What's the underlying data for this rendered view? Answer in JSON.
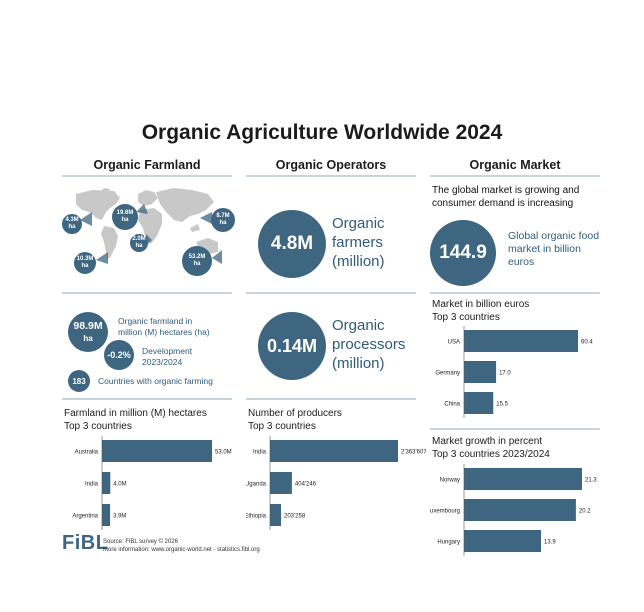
{
  "title": "Organic Agriculture Worldwide 2024",
  "columns": {
    "farmland": "Organic Farmland",
    "operators": "Organic Operators",
    "market": "Organic Market"
  },
  "map_bubbles": [
    {
      "value": "4.3M",
      "unit": "ha"
    },
    {
      "value": "19.6M",
      "unit": "ha"
    },
    {
      "value": "8.7M",
      "unit": "ha"
    },
    {
      "value": "2.0M",
      "unit": "ha"
    },
    {
      "value": "10.3M",
      "unit": "ha"
    },
    {
      "value": "53.2M",
      "unit": "ha"
    }
  ],
  "farmland_stats": {
    "area_value": "98.9M",
    "area_unit": "ha",
    "area_label_1": "Organic farmland in",
    "area_label_2": "million (M) hectares (ha)",
    "dev_value": "-0.2%",
    "dev_label_1": "Development",
    "dev_label_2": "2023/2024",
    "countries_value": "183",
    "countries_label": "Countries with organic farming"
  },
  "operators": {
    "farmers_value": "4.8M",
    "farmers_label": [
      "Organic",
      "farmers",
      "(million)"
    ],
    "processors_value": "0.14M",
    "processors_label": [
      "Organic",
      "processors",
      "(million)"
    ]
  },
  "market": {
    "intro_1": "The global market is growing and",
    "intro_2": "consumer demand is increasing",
    "value": "144.9",
    "label": [
      "Global organic food",
      "market in billion",
      "euros"
    ]
  },
  "footer": {
    "logo": "FiBL",
    "source": "Source: FiBL survey © 2026",
    "more": "More information: www.organic-world.net - statistics.fibl.org"
  },
  "chart_data": [
    {
      "type": "bar",
      "title_1": "Farmland in million (M) hectares",
      "title_2": "Top 3 countries",
      "categories": [
        "Australia",
        "India",
        "Argentina"
      ],
      "values": [
        53.0,
        4.0,
        3.9
      ],
      "value_labels": [
        "53.0M",
        "4.0M",
        "3.9M"
      ]
    },
    {
      "type": "bar",
      "title_1": "Number of producers",
      "title_2": "Top 3 countries",
      "categories": [
        "India",
        "Uganda",
        "Ethiopia"
      ],
      "values": [
        2363607,
        404246,
        203258
      ],
      "value_labels": [
        "2'363'607",
        "404'246",
        "203'258"
      ]
    },
    {
      "type": "bar",
      "title_1": "Market in billion euros",
      "title_2": "Top 3 countries",
      "categories": [
        "USA",
        "Germany",
        "China"
      ],
      "values": [
        60.4,
        17.0,
        15.5
      ],
      "value_labels": [
        "60.4",
        "17.0",
        "15.5"
      ]
    },
    {
      "type": "bar",
      "title_1": "Market growth in percent",
      "title_2": "Top 3 countries 2023/2024",
      "categories": [
        "Norway",
        "Luxembourg",
        "Hungary"
      ],
      "values": [
        21.3,
        20.2,
        13.9
      ],
      "value_labels": [
        "21.3",
        "20.2",
        "13.9"
      ]
    }
  ],
  "colors": {
    "accent": "#3e6680",
    "map_grey": "#c8c8c8",
    "rule": "#c9d3da"
  }
}
